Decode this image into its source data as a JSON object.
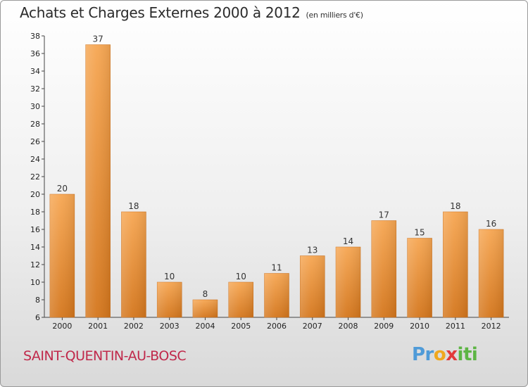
{
  "header": {
    "title": "Achats et Charges Externes 2000 à 2012",
    "subtitle": "(en milliers d'€)"
  },
  "footer": {
    "commune": "SAINT-QUENTIN-AU-BOSC",
    "brand_parts": [
      "Pr",
      "o",
      "x",
      "iti"
    ]
  },
  "colors": {
    "bar_light": "#f6a652",
    "bar_dark": "#d4761c",
    "brand_blue": "#4f9bd8",
    "brand_orange": "#f0a81e",
    "brand_red": "#e23a3a",
    "brand_green": "#5db544",
    "commune": "#c0284a"
  },
  "chart_data": {
    "type": "bar",
    "categories": [
      "2000",
      "2001",
      "2002",
      "2003",
      "2004",
      "2005",
      "2006",
      "2007",
      "2008",
      "2009",
      "2010",
      "2011",
      "2012"
    ],
    "values": [
      20,
      37,
      18,
      10,
      8,
      10,
      11,
      13,
      14,
      17,
      15,
      18,
      16
    ],
    "ylim": [
      6,
      38
    ],
    "yticks": [
      6,
      8,
      10,
      12,
      14,
      16,
      18,
      20,
      22,
      24,
      26,
      28,
      30,
      32,
      34,
      36,
      38
    ],
    "grid": false,
    "data_labels": true
  }
}
